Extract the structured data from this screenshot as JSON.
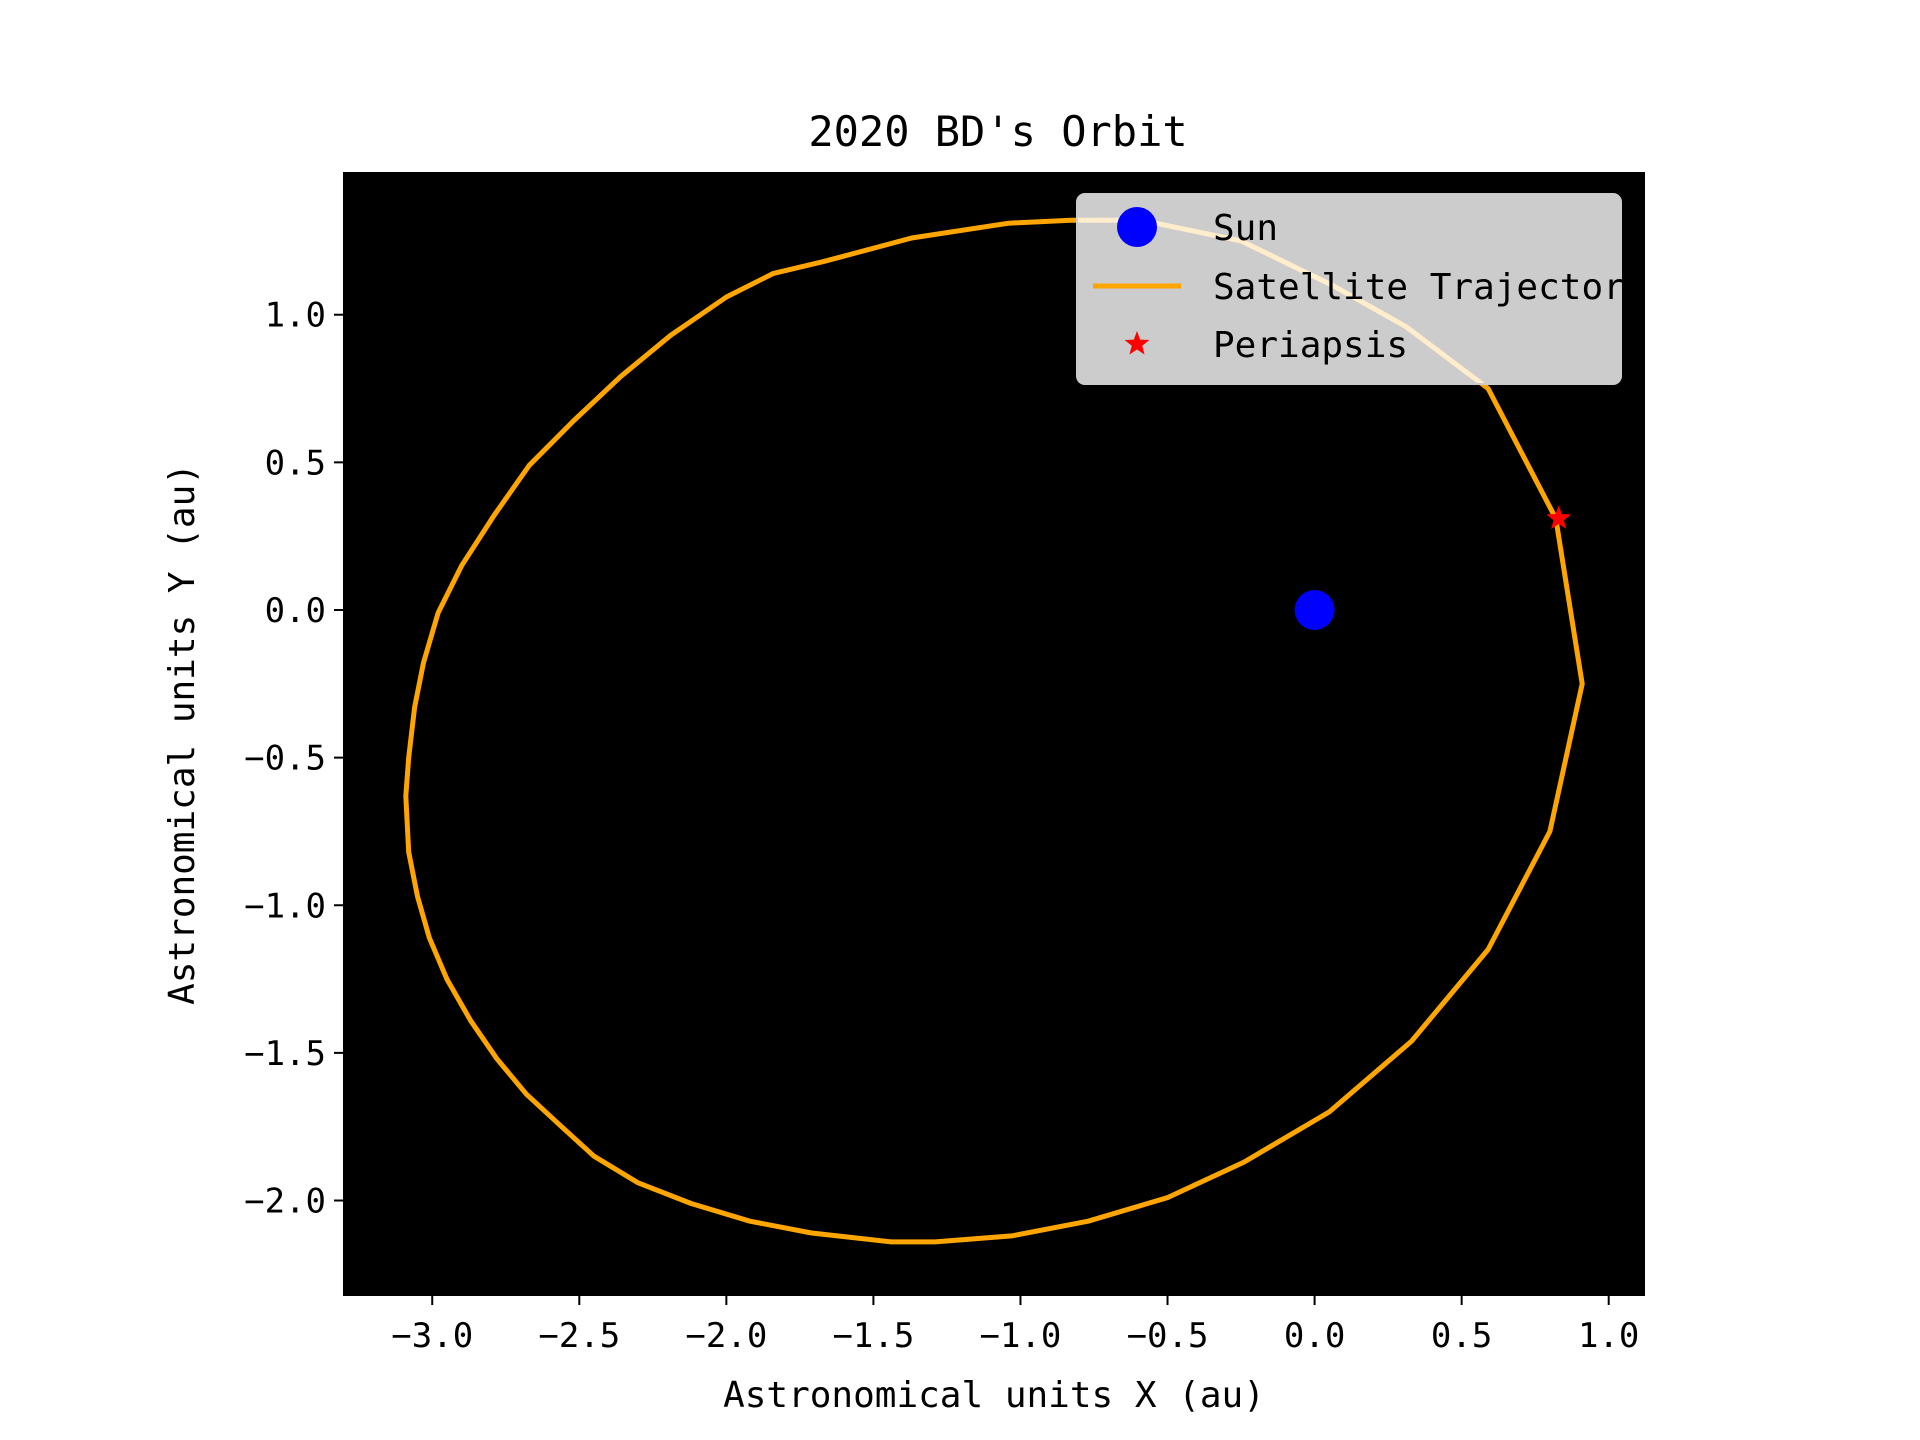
{
  "chart_data": {
    "type": "line",
    "title": "2020 BD's Orbit",
    "xlabel": "Astronomical units X (au)",
    "ylabel": "Astronomical units Y (au)",
    "xlim": [
      -3.3,
      1.12
    ],
    "ylim": [
      -2.32,
      1.48
    ],
    "xticks": [
      -3.0,
      -2.5,
      -2.0,
      -1.5,
      -1.0,
      -0.5,
      0.0,
      0.5,
      1.0
    ],
    "xtick_labels": [
      "−3.0",
      "−2.5",
      "−2.0",
      "−1.5",
      "−1.0",
      "−0.5",
      "0.0",
      "0.5",
      "1.0"
    ],
    "yticks": [
      1.0,
      0.5,
      0.0,
      -0.5,
      -1.0,
      -1.5,
      -2.0
    ],
    "ytick_labels": [
      "1.0",
      "0.5",
      "0.0",
      "−0.5",
      "−1.0",
      "−1.5",
      "−2.0"
    ],
    "background": "#000000",
    "grid": false,
    "legend_position": "top-right",
    "series": [
      {
        "name": "Sun",
        "kind": "marker",
        "marker": "circle",
        "color": "#0000ff",
        "points": [
          [
            0.0,
            0.0
          ]
        ]
      },
      {
        "name": "Satellite Trajectory",
        "kind": "line",
        "color": "#ffa500",
        "points": [
          [
            0.82,
            0.31
          ],
          [
            0.91,
            -0.25
          ],
          [
            0.8,
            -0.75
          ],
          [
            0.59,
            -1.15
          ],
          [
            0.33,
            -1.46
          ],
          [
            0.05,
            -1.7
          ],
          [
            -0.24,
            -1.87
          ],
          [
            -0.5,
            -1.99
          ],
          [
            -0.77,
            -2.07
          ],
          [
            -1.03,
            -2.12
          ],
          [
            -1.29,
            -2.14
          ],
          [
            -1.44,
            -2.14
          ],
          [
            -1.71,
            -2.11
          ],
          [
            -1.92,
            -2.07
          ],
          [
            -2.12,
            -2.01
          ],
          [
            -2.3,
            -1.94
          ],
          [
            -2.45,
            -1.85
          ],
          [
            -2.56,
            -1.75
          ],
          [
            -2.68,
            -1.64
          ],
          [
            -2.78,
            -1.52
          ],
          [
            -2.87,
            -1.39
          ],
          [
            -2.95,
            -1.25
          ],
          [
            -3.01,
            -1.11
          ],
          [
            -3.05,
            -0.97
          ],
          [
            -3.08,
            -0.82
          ],
          [
            -3.09,
            -0.63
          ],
          [
            -3.08,
            -0.5
          ],
          [
            -3.06,
            -0.33
          ],
          [
            -3.03,
            -0.18
          ],
          [
            -2.98,
            -0.01
          ],
          [
            -2.9,
            0.15
          ],
          [
            -2.79,
            0.32
          ],
          [
            -2.67,
            0.49
          ],
          [
            -2.52,
            0.64
          ],
          [
            -2.36,
            0.79
          ],
          [
            -2.19,
            0.93
          ],
          [
            -2.0,
            1.06
          ],
          [
            -1.84,
            1.14
          ],
          [
            -1.67,
            1.18
          ],
          [
            -1.37,
            1.26
          ],
          [
            -1.04,
            1.31
          ],
          [
            -0.83,
            1.32
          ],
          [
            -0.59,
            1.32
          ],
          [
            -0.25,
            1.25
          ],
          [
            0.06,
            1.1
          ],
          [
            0.31,
            0.96
          ],
          [
            0.59,
            0.75
          ],
          [
            0.82,
            0.31
          ]
        ]
      },
      {
        "name": "Periapsis",
        "kind": "marker",
        "marker": "star",
        "color": "#ff0000",
        "points": [
          [
            0.83,
            0.31
          ]
        ]
      }
    ]
  }
}
